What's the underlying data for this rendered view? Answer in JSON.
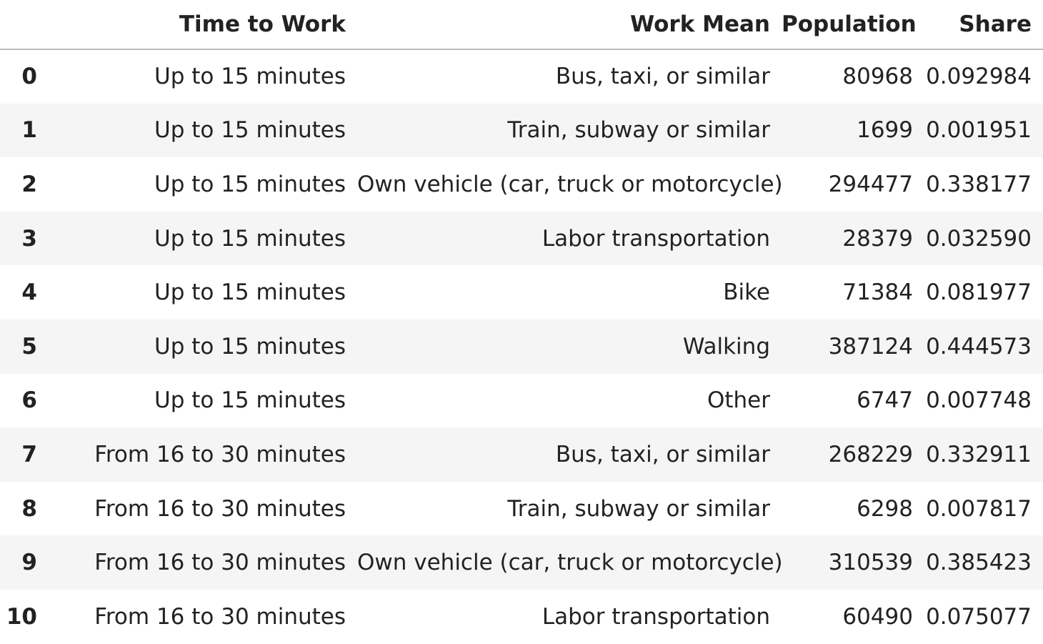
{
  "table": {
    "columns": [
      "",
      "Time to Work",
      "Work Mean",
      "Population",
      "Share"
    ],
    "rows": [
      {
        "index": "0",
        "time": "Up to 15 minutes",
        "mean": "Bus, taxi, or similar",
        "population": "80968",
        "share": "0.092984"
      },
      {
        "index": "1",
        "time": "Up to 15 minutes",
        "mean": "Train, subway or similar",
        "population": "1699",
        "share": "0.001951"
      },
      {
        "index": "2",
        "time": "Up to 15 minutes",
        "mean": "Own vehicle (car, truck or motorcycle)",
        "population": "294477",
        "share": "0.338177"
      },
      {
        "index": "3",
        "time": "Up to 15 minutes",
        "mean": "Labor transportation",
        "population": "28379",
        "share": "0.032590"
      },
      {
        "index": "4",
        "time": "Up to 15 minutes",
        "mean": "Bike",
        "population": "71384",
        "share": "0.081977"
      },
      {
        "index": "5",
        "time": "Up to 15 minutes",
        "mean": "Walking",
        "population": "387124",
        "share": "0.444573"
      },
      {
        "index": "6",
        "time": "Up to 15 minutes",
        "mean": "Other",
        "population": "6747",
        "share": "0.007748"
      },
      {
        "index": "7",
        "time": "From 16 to 30 minutes",
        "mean": "Bus, taxi, or similar",
        "population": "268229",
        "share": "0.332911"
      },
      {
        "index": "8",
        "time": "From 16 to 30 minutes",
        "mean": "Train, subway or similar",
        "population": "6298",
        "share": "0.007817"
      },
      {
        "index": "9",
        "time": "From 16 to 30 minutes",
        "mean": "Own vehicle (car, truck or motorcycle)",
        "population": "310539",
        "share": "0.385423"
      },
      {
        "index": "10",
        "time": "From 16 to 30 minutes",
        "mean": "Labor transportation",
        "population": "60490",
        "share": "0.075077"
      }
    ]
  }
}
